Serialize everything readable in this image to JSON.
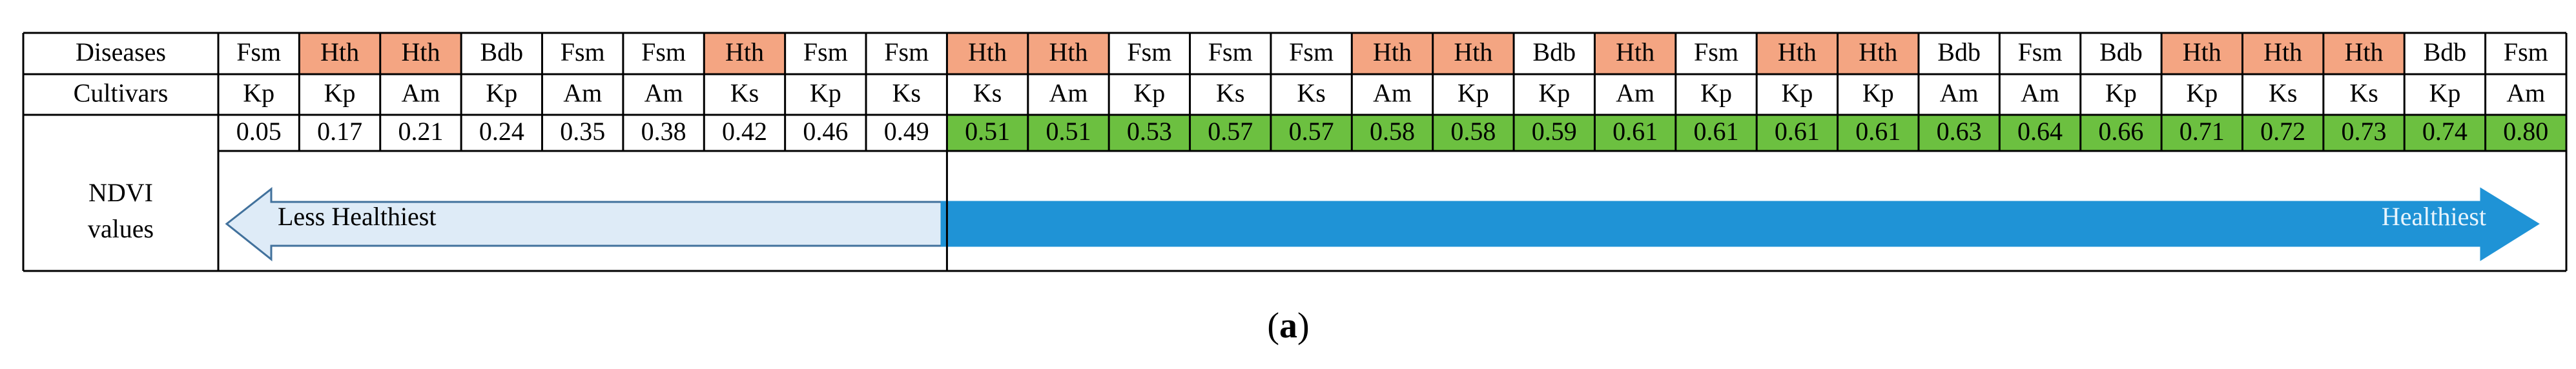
{
  "row_labels": {
    "diseases": "Diseases",
    "cultivars": "Cultivars",
    "ndvi": "NDVI values"
  },
  "diseases": [
    "Fsm",
    "Hth",
    "Hth",
    "Bdb",
    "Fsm",
    "Fsm",
    "Hth",
    "Fsm",
    "Fsm",
    "Hth",
    "Hth",
    "Fsm",
    "Fsm",
    "Fsm",
    "Hth",
    "Hth",
    "Bdb",
    "Hth",
    "Fsm",
    "Hth",
    "Hth",
    "Bdb",
    "Fsm",
    "Bdb",
    "Hth",
    "Hth",
    "Hth",
    "Bdb",
    "Fsm"
  ],
  "cultivars": [
    "Kp",
    "Kp",
    "Am",
    "Kp",
    "Am",
    "Am",
    "Ks",
    "Kp",
    "Ks",
    "Ks",
    "Am",
    "Kp",
    "Ks",
    "Ks",
    "Am",
    "Kp",
    "Kp",
    "Am",
    "Kp",
    "Kp",
    "Kp",
    "Am",
    "Am",
    "Kp",
    "Kp",
    "Ks",
    "Ks",
    "Kp",
    "Am"
  ],
  "ndvi_values": [
    "0.05",
    "0.17",
    "0.21",
    "0.24",
    "0.35",
    "0.38",
    "0.42",
    "0.46",
    "0.49",
    "0.51",
    "0.51",
    "0.53",
    "0.57",
    "0.57",
    "0.58",
    "0.58",
    "0.59",
    "0.61",
    "0.61",
    "0.61",
    "0.61",
    "0.63",
    "0.64",
    "0.66",
    "0.71",
    "0.72",
    "0.73",
    "0.74",
    "0.80"
  ],
  "arrows": {
    "left": "Less Healthiest",
    "right": "Healthiest"
  },
  "caption": {
    "letter": "a"
  }
}
